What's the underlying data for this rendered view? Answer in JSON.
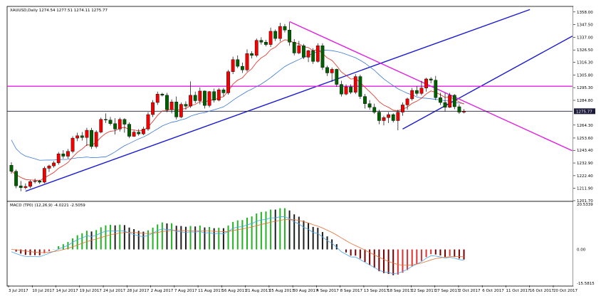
{
  "header": {
    "symbol_line": "XAUUSD,Daily  1274.54 1277.51 1274.11 1275.77",
    "macd_line": "MACD (TP0) (12,26,9) -4.0221 -2.5059"
  },
  "price_panel": {
    "price_ticks": [
      "1358.00",
      "1347.50",
      "1337.00",
      "1326.50",
      "1316.30",
      "1305.80",
      "1295.30",
      "1284.80",
      "1264.30",
      "1253.60",
      "1243.40",
      "1232.90",
      "1222.40",
      "1211.90",
      "1201.70"
    ],
    "current_price_label": "1275.77",
    "colors": {
      "bull": "#f30000",
      "bear": "#006000",
      "ma_fast": "#e8281b",
      "ma_slow": "#3a78d6",
      "trendline": "#1a1ad0",
      "channel": "#e020e0",
      "hline": "#1c1c3a"
    }
  },
  "macd_panel": {
    "ticks": [
      "20.5339",
      "0.00",
      "-15.5815"
    ],
    "colors": {
      "pos_up": "#22b322",
      "pos_down": "#1c1c1c",
      "neg_down": "#7a0000",
      "neg_up": "#e03030",
      "main": "#4aa3e8",
      "signal": "#e2703a"
    }
  },
  "date_ticks": [
    "3 Jul 2017",
    "10 Jul 2017",
    "14 Jul 2017",
    "19 Jul 2017",
    "24 Jul 2017",
    "28 Jul 2017",
    "2 Aug 2017",
    "7 Aug 2017",
    "11 Aug 2017",
    "16 Aug 2017",
    "21 Aug 2017",
    "25 Aug 2017",
    "30 Aug 2017",
    "4 Sep 2017",
    "8 Sep 2017",
    "13 Sep 2017",
    "18 Sep 2017",
    "22 Sep 2017",
    "27 Sep 2017",
    "2 Oct 2017",
    "6 Oct 2017",
    "11 Oct 2017",
    "16 Oct 2017",
    "20 Oct 2017"
  ],
  "chart_data": {
    "type": "candlestick",
    "symbol": "XAUUSD",
    "timeframe": "Daily",
    "ohlc": [
      [
        1231.0,
        1233.5,
        1224.0,
        1226.0
      ],
      [
        1226.0,
        1227.5,
        1212.0,
        1214.0
      ],
      [
        1214.0,
        1218.0,
        1209.5,
        1212.5
      ],
      [
        1212.5,
        1216.0,
        1211.0,
        1213.5
      ],
      [
        1213.5,
        1219.0,
        1212.0,
        1217.5
      ],
      [
        1217.5,
        1220.0,
        1216.0,
        1218.0
      ],
      [
        1218.0,
        1219.0,
        1215.5,
        1217.0
      ],
      [
        1217.0,
        1230.0,
        1216.0,
        1228.5
      ],
      [
        1228.5,
        1231.5,
        1225.5,
        1230.5
      ],
      [
        1230.5,
        1234.5,
        1229.0,
        1233.0
      ],
      [
        1233.0,
        1242.0,
        1231.5,
        1240.5
      ],
      [
        1240.5,
        1243.5,
        1236.5,
        1238.5
      ],
      [
        1238.5,
        1244.5,
        1236.5,
        1242.5
      ],
      [
        1242.5,
        1255.0,
        1241.0,
        1253.5
      ],
      [
        1253.5,
        1258.0,
        1251.0,
        1255.5
      ],
      [
        1255.5,
        1258.5,
        1251.5,
        1254.0
      ],
      [
        1254.0,
        1262.0,
        1247.0,
        1260.0
      ],
      [
        1260.0,
        1262.0,
        1244.5,
        1246.5
      ],
      [
        1246.5,
        1260.0,
        1245.0,
        1258.5
      ],
      [
        1258.5,
        1270.5,
        1257.5,
        1269.0
      ],
      [
        1269.0,
        1274.0,
        1266.0,
        1268.5
      ],
      [
        1268.5,
        1271.0,
        1264.0,
        1265.5
      ],
      [
        1265.5,
        1270.0,
        1256.5,
        1261.0
      ],
      [
        1261.0,
        1270.5,
        1259.0,
        1269.0
      ],
      [
        1269.0,
        1270.0,
        1258.0,
        1265.0
      ],
      [
        1265.0,
        1266.5,
        1253.5,
        1255.0
      ],
      [
        1255.0,
        1260.0,
        1254.5,
        1258.5
      ],
      [
        1258.5,
        1261.0,
        1255.5,
        1257.0
      ],
      [
        1257.0,
        1263.0,
        1256.0,
        1261.0
      ],
      [
        1261.0,
        1275.0,
        1259.5,
        1273.0
      ],
      [
        1273.0,
        1285.0,
        1271.0,
        1283.0
      ],
      [
        1283.0,
        1292.0,
        1281.0,
        1290.0
      ],
      [
        1290.0,
        1291.0,
        1288.0,
        1289.0
      ],
      [
        1289.0,
        1291.0,
        1275.0,
        1277.0
      ],
      [
        1277.0,
        1285.5,
        1274.0,
        1283.5
      ],
      [
        1283.5,
        1288.0,
        1269.0,
        1271.0
      ],
      [
        1271.0,
        1283.0,
        1270.0,
        1281.5
      ],
      [
        1281.5,
        1284.0,
        1277.0,
        1280.0
      ],
      [
        1280.0,
        1300.5,
        1278.5,
        1289.0
      ],
      [
        1289.0,
        1292.0,
        1282.5,
        1284.5
      ],
      [
        1284.5,
        1295.5,
        1281.5,
        1292.5
      ],
      [
        1292.5,
        1293.0,
        1278.0,
        1280.5
      ],
      [
        1280.5,
        1292.5,
        1279.0,
        1292.0
      ],
      [
        1292.0,
        1294.5,
        1283.0,
        1285.0
      ],
      [
        1285.0,
        1295.0,
        1284.0,
        1293.5
      ],
      [
        1293.5,
        1295.0,
        1288.0,
        1291.0
      ],
      [
        1291.0,
        1310.0,
        1289.5,
        1308.5
      ],
      [
        1308.5,
        1321.0,
        1306.5,
        1318.5
      ],
      [
        1318.5,
        1322.0,
        1311.5,
        1313.0
      ],
      [
        1313.0,
        1316.0,
        1307.5,
        1310.0
      ],
      [
        1310.0,
        1327.0,
        1308.5,
        1323.5
      ],
      [
        1323.5,
        1325.5,
        1319.5,
        1322.0
      ],
      [
        1322.0,
        1336.0,
        1320.5,
        1334.5
      ],
      [
        1334.5,
        1337.0,
        1331.0,
        1333.0
      ],
      [
        1333.0,
        1335.0,
        1329.5,
        1331.0
      ],
      [
        1331.0,
        1345.0,
        1329.0,
        1342.0
      ],
      [
        1342.0,
        1343.5,
        1334.0,
        1336.0
      ],
      [
        1336.0,
        1349.0,
        1333.5,
        1346.0
      ],
      [
        1346.0,
        1348.0,
        1341.0,
        1343.0
      ],
      [
        1343.0,
        1349.5,
        1330.0,
        1333.0
      ],
      [
        1333.0,
        1335.5,
        1322.0,
        1324.0
      ],
      [
        1324.0,
        1334.0,
        1323.0,
        1330.0
      ],
      [
        1330.0,
        1331.5,
        1319.0,
        1320.5
      ],
      [
        1320.5,
        1326.5,
        1316.5,
        1326.0
      ],
      [
        1326.0,
        1328.0,
        1315.0,
        1317.0
      ],
      [
        1317.0,
        1332.0,
        1316.0,
        1330.0
      ],
      [
        1330.0,
        1332.0,
        1310.0,
        1312.0
      ],
      [
        1312.0,
        1313.5,
        1305.0,
        1307.5
      ],
      [
        1307.5,
        1312.0,
        1300.0,
        1310.5
      ],
      [
        1310.5,
        1311.0,
        1296.0,
        1298.0
      ],
      [
        1298.0,
        1301.0,
        1288.0,
        1290.0
      ],
      [
        1290.0,
        1298.0,
        1289.0,
        1296.0
      ],
      [
        1296.0,
        1298.0,
        1290.0,
        1291.5
      ],
      [
        1291.5,
        1306.5,
        1290.0,
        1304.5
      ],
      [
        1304.5,
        1306.0,
        1286.0,
        1288.0
      ],
      [
        1288.0,
        1290.0,
        1278.0,
        1282.0
      ],
      [
        1282.0,
        1285.0,
        1277.0,
        1279.0
      ],
      [
        1279.0,
        1282.0,
        1273.5,
        1275.0
      ],
      [
        1275.0,
        1277.0,
        1265.0,
        1268.0
      ],
      [
        1268.0,
        1272.0,
        1264.0,
        1270.5
      ],
      [
        1270.5,
        1275.0,
        1266.0,
        1273.0
      ],
      [
        1273.0,
        1274.0,
        1266.5,
        1268.0
      ],
      [
        1268.0,
        1277.0,
        1260.0,
        1275.0
      ],
      [
        1275.0,
        1283.0,
        1272.0,
        1281.0
      ],
      [
        1281.0,
        1287.0,
        1277.0,
        1286.0
      ],
      [
        1286.0,
        1295.0,
        1284.5,
        1293.0
      ],
      [
        1293.0,
        1296.5,
        1288.5,
        1290.5
      ],
      [
        1290.5,
        1301.0,
        1289.0,
        1295.0
      ],
      [
        1295.0,
        1303.5,
        1292.0,
        1302.5
      ],
      [
        1302.5,
        1304.0,
        1299.0,
        1301.5
      ],
      [
        1301.5,
        1305.0,
        1285.0,
        1287.0
      ],
      [
        1287.0,
        1291.0,
        1281.0,
        1283.0
      ],
      [
        1283.0,
        1291.0,
        1275.5,
        1279.0
      ],
      [
        1279.0,
        1291.0,
        1278.5,
        1289.0
      ],
      [
        1289.0,
        1290.0,
        1277.5,
        1279.5
      ],
      [
        1279.5,
        1281.5,
        1273.5,
        1275.0
      ],
      [
        1275.0,
        1277.5,
        1274.0,
        1275.77
      ]
    ],
    "ma_fast_period": 8,
    "ma_slow_period": 21,
    "macd": {
      "fast": 12,
      "slow": 26,
      "signal": 9,
      "main_last": -4.0221,
      "signal_last": -2.5059
    },
    "trendlines": [
      {
        "name": "uptrend",
        "color": "#1a1ad0",
        "from": [
          3,
          1209.5
        ],
        "to": [
          110,
          1360
        ]
      },
      {
        "name": "short-uptrend",
        "color": "#1a1ad0",
        "from": [
          83,
          1261
        ],
        "to": [
          119,
          1338
        ]
      },
      {
        "name": "downtrend",
        "color": "#e020e0",
        "from": [
          59,
          1350
        ],
        "to": [
          119,
          1243
        ]
      },
      {
        "name": "resistance",
        "color": "#e020e0",
        "from": [
          -2,
          1296.5
        ],
        "to": [
          119,
          1296.5
        ]
      },
      {
        "name": "current-price",
        "color": "#1c1c3a",
        "from": [
          -2,
          1275.77
        ],
        "to": [
          119,
          1275.77
        ]
      }
    ],
    "price_range": [
      1201.7,
      1362
    ],
    "macd_range": [
      -15.5815,
      20.5339
    ]
  }
}
